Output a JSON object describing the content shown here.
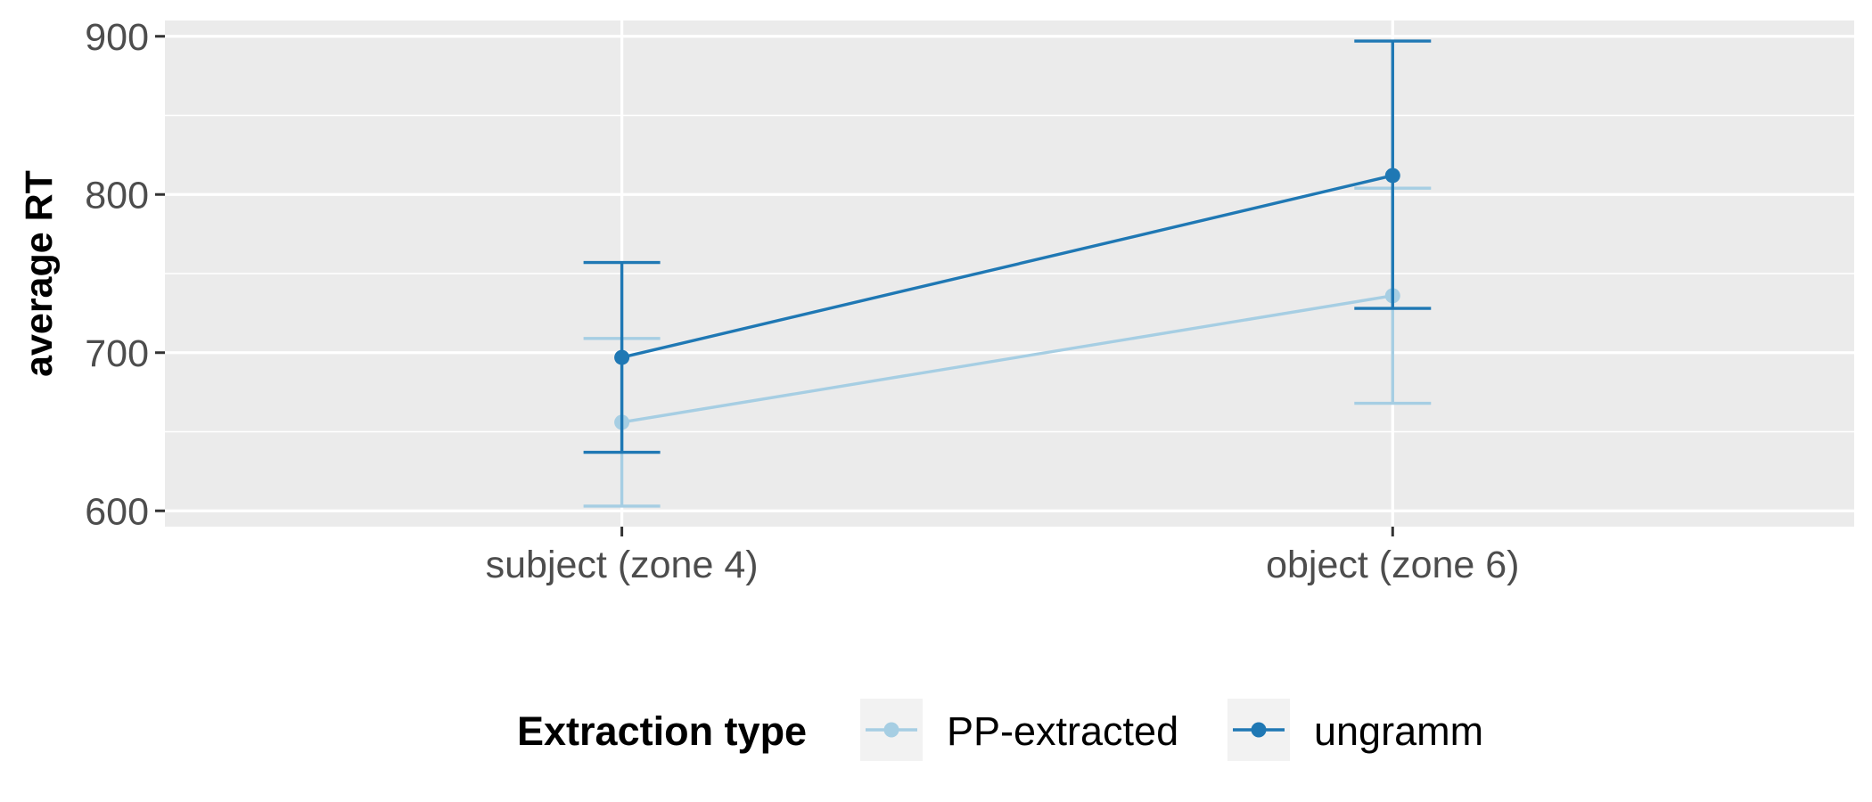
{
  "chart_data": {
    "type": "line",
    "title": "",
    "xlabel": "",
    "ylabel": "average RT",
    "categories": [
      "subject (zone 4)",
      "object (zone 6)"
    ],
    "ylim": [
      590,
      910
    ],
    "yticks": [
      600,
      700,
      800,
      900
    ],
    "grid": true,
    "legend": {
      "title": "Extraction type",
      "position": "bottom"
    },
    "error_bars": true,
    "series": [
      {
        "name": "PP-extracted",
        "color": "#a6cee3",
        "values": [
          656,
          736
        ],
        "lower": [
          603,
          668
        ],
        "upper": [
          709,
          804
        ]
      },
      {
        "name": "ungramm",
        "color": "#1f78b4",
        "values": [
          697,
          812
        ],
        "lower": [
          637,
          728
        ],
        "upper": [
          757,
          897
        ]
      }
    ]
  }
}
